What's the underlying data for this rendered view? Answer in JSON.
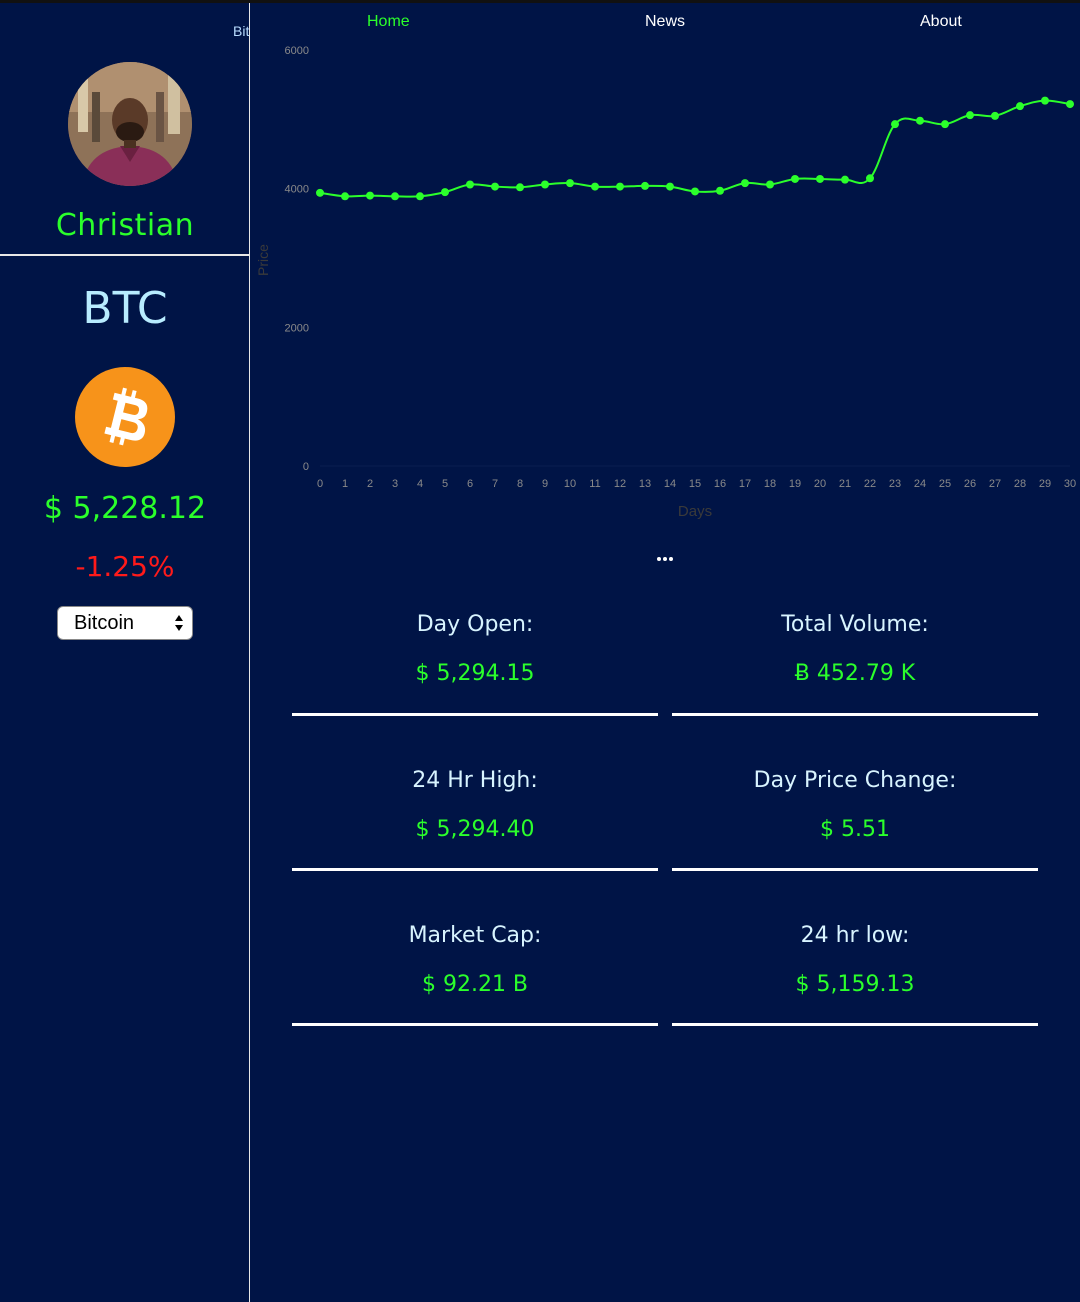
{
  "sidebar": {
    "brand_clipped": "Bit",
    "username": "Christian",
    "ticker": "BTC",
    "coin_icon": "bitcoin-icon",
    "price": "$ 5,228.12",
    "change": "-1.25%",
    "select_value": "Bitcoin"
  },
  "nav": {
    "items": [
      {
        "label": "Home",
        "active": true
      },
      {
        "label": "News",
        "active": false
      },
      {
        "label": "About",
        "active": false
      }
    ]
  },
  "colors": {
    "background": "#001446",
    "accent_green": "#2bff2b",
    "negative_red": "#ff1a1a",
    "label_light": "#d8f4ff"
  },
  "chart_data": {
    "type": "line",
    "xlabel": "Days",
    "ylabel": "Price",
    "ylim": [
      0,
      6000
    ],
    "yticks": [
      0,
      2000,
      4000,
      6000
    ],
    "x": [
      0,
      1,
      2,
      3,
      4,
      5,
      6,
      7,
      8,
      9,
      10,
      11,
      12,
      13,
      14,
      15,
      16,
      17,
      18,
      19,
      20,
      21,
      22,
      23,
      24,
      25,
      26,
      27,
      28,
      29,
      30
    ],
    "series": [
      {
        "values": [
          3940,
          3890,
          3900,
          3890,
          3890,
          3950,
          4060,
          4030,
          4020,
          4060,
          4080,
          4030,
          4030,
          4040,
          4030,
          3960,
          3970,
          4080,
          4060,
          4140,
          4140,
          4130,
          4150,
          4930,
          4980,
          4930,
          5060,
          5050,
          5190,
          5270,
          5220
        ],
        "color": "#2bff2b"
      }
    ],
    "grid": false,
    "legend": "none"
  },
  "more_icon": "ellipsis-icon",
  "stats": [
    {
      "label": "Day Open:",
      "value": "$ 5,294.15"
    },
    {
      "label": "Total Volume:",
      "value": "Ƀ 452.79 K"
    },
    {
      "label": "24 Hr High:",
      "value": "$ 5,294.40"
    },
    {
      "label": "Day Price Change:",
      "value": "$ 5.51"
    },
    {
      "label": "Market Cap:",
      "value": "$ 92.21 B"
    },
    {
      "label": "24 hr low:",
      "value": "$ 5,159.13"
    }
  ]
}
